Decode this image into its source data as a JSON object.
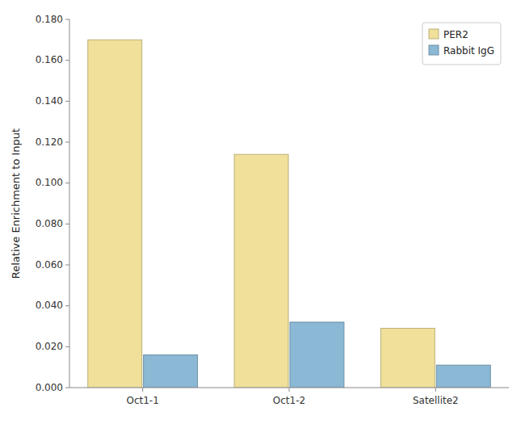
{
  "chart_data": {
    "type": "bar",
    "categories": [
      "Oct1-1",
      "Oct1-2",
      "Satellite2"
    ],
    "series": [
      {
        "name": "PER2",
        "color": "#F0E09A",
        "values": [
          0.17,
          0.114,
          0.029
        ]
      },
      {
        "name": "Rabbit IgG",
        "color": "#8BB8D4",
        "values": [
          0.016,
          0.032,
          0.011
        ]
      }
    ],
    "ylabel": "Relative Enrichment to Input",
    "ylim": [
      0,
      0.18
    ],
    "yticks": [
      {
        "value": 0.0,
        "label": "0.000"
      },
      {
        "value": 0.02,
        "label": "0.020"
      },
      {
        "value": 0.04,
        "label": "0.040"
      },
      {
        "value": 0.06,
        "label": "0.060"
      },
      {
        "value": 0.08,
        "label": "0.080"
      },
      {
        "value": 0.1,
        "label": "0.100"
      },
      {
        "value": 0.12,
        "label": "0.120"
      },
      {
        "value": 0.14,
        "label": "0.140"
      },
      {
        "value": 0.16,
        "label": "0.160"
      },
      {
        "value": 0.18,
        "label": "0.180"
      }
    ],
    "grid": false,
    "legend": "upper right"
  }
}
